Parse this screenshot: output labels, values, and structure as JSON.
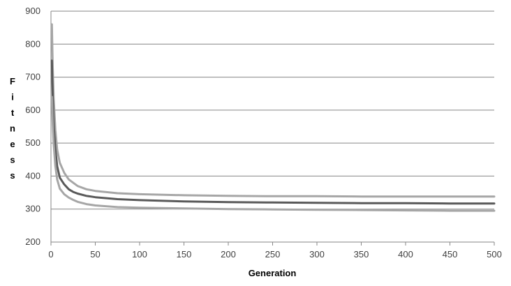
{
  "chart_data": {
    "type": "line",
    "xlabel": "Generation",
    "ylabel_letters": [
      "F",
      "i",
      "t",
      "n",
      "e",
      "s",
      "s"
    ],
    "xlim": [
      0,
      500
    ],
    "ylim": [
      200,
      900
    ],
    "xticks": [
      0,
      50,
      100,
      150,
      200,
      250,
      300,
      350,
      400,
      450,
      500
    ],
    "yticks": [
      200,
      300,
      400,
      500,
      600,
      700,
      800,
      900
    ],
    "grid": "horizontal",
    "legend": "none",
    "colors": {
      "grid": "#868686",
      "axis": "#868686",
      "upper": "#a6a6a6",
      "mean": "#595959",
      "lower": "#a6a6a6"
    },
    "x": [
      1,
      2,
      3,
      5,
      7,
      10,
      15,
      20,
      25,
      30,
      40,
      50,
      75,
      100,
      150,
      200,
      250,
      300,
      350,
      400,
      450,
      500
    ],
    "series": [
      {
        "values": [
          860,
          730,
          640,
          540,
          480,
          440,
          410,
          390,
          380,
          370,
          360,
          355,
          348,
          345,
          342,
          340,
          339,
          339,
          338,
          338,
          338,
          338
        ]
      },
      {
        "values": [
          750,
          640,
          560,
          480,
          430,
          395,
          375,
          360,
          352,
          347,
          340,
          336,
          330,
          327,
          323,
          321,
          320,
          319,
          318,
          318,
          317,
          317
        ]
      },
      {
        "values": [
          640,
          560,
          500,
          430,
          390,
          362,
          345,
          335,
          328,
          322,
          315,
          311,
          306,
          304,
          302,
          300,
          299,
          298,
          297,
          296,
          295,
          295
        ]
      }
    ]
  }
}
